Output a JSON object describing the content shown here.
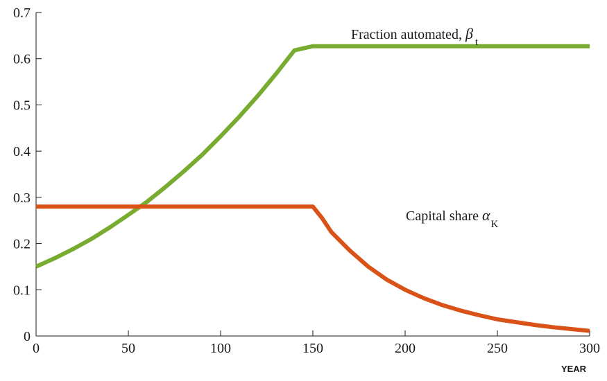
{
  "chart_data": {
    "type": "line",
    "title": "",
    "xlabel": "YEAR",
    "ylabel": "",
    "xlim": [
      0,
      300
    ],
    "ylim": [
      0,
      0.7
    ],
    "xticks": [
      "0",
      "50",
      "100",
      "150",
      "200",
      "250",
      "300"
    ],
    "yticks": [
      "0",
      "0.1",
      "0.2",
      "0.3",
      "0.4",
      "0.5",
      "0.6",
      "0.7"
    ],
    "grid": false,
    "legend": "none",
    "series": [
      {
        "label_text": "Fraction automated, ",
        "label_symbol": "β",
        "label_subscript": "t",
        "color": "#77AC30",
        "x": [
          0,
          10,
          20,
          30,
          40,
          50,
          60,
          70,
          80,
          90,
          100,
          110,
          120,
          130,
          140,
          150,
          160,
          180,
          200,
          220,
          240,
          260,
          280,
          300
        ],
        "y": [
          0.15,
          0.168,
          0.188,
          0.21,
          0.235,
          0.262,
          0.29,
          0.322,
          0.356,
          0.392,
          0.432,
          0.474,
          0.519,
          0.567,
          0.618,
          0.627,
          0.627,
          0.627,
          0.627,
          0.627,
          0.627,
          0.627,
          0.627,
          0.627
        ]
      },
      {
        "label_text": "Capital share ",
        "label_symbol": "α",
        "label_subscript": "K",
        "color": "#D95319",
        "x": [
          0,
          25,
          50,
          75,
          100,
          125,
          150,
          155,
          160,
          170,
          180,
          190,
          200,
          210,
          220,
          230,
          240,
          250,
          260,
          270,
          280,
          290,
          300
        ],
        "y": [
          0.28,
          0.28,
          0.28,
          0.28,
          0.28,
          0.28,
          0.28,
          0.255,
          0.225,
          0.185,
          0.15,
          0.122,
          0.1,
          0.082,
          0.067,
          0.055,
          0.045,
          0.036,
          0.03,
          0.024,
          0.019,
          0.015,
          0.011
        ]
      }
    ]
  }
}
